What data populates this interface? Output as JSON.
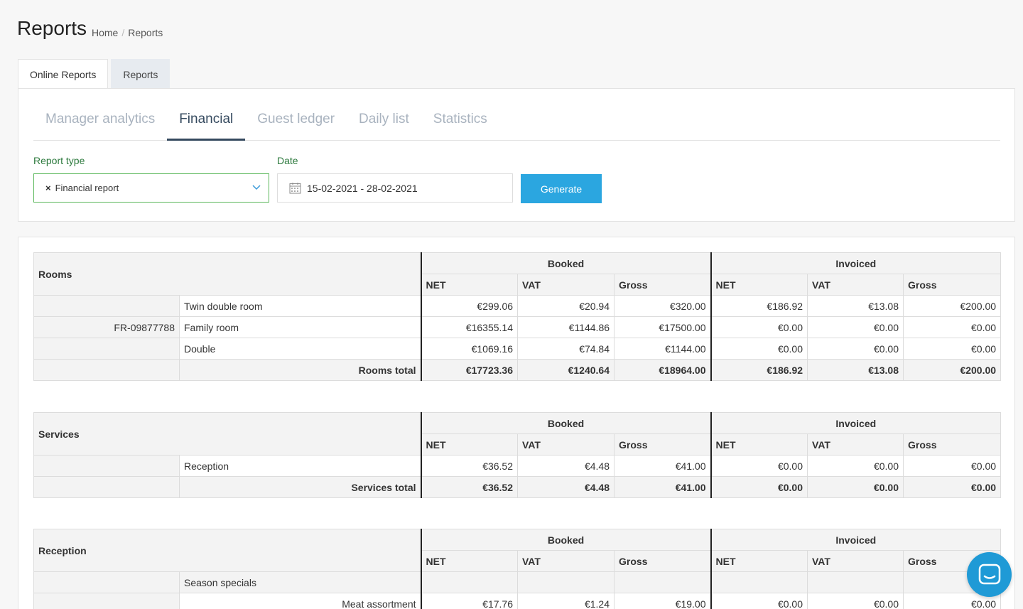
{
  "header": {
    "title": "Reports",
    "breadcrumb": [
      "Home",
      "Reports"
    ]
  },
  "outer_tabs": [
    "Online Reports",
    "Reports"
  ],
  "sub_tabs": [
    "Manager analytics",
    "Financial",
    "Guest ledger",
    "Daily list",
    "Statistics"
  ],
  "form": {
    "report_type_label": "Report type",
    "report_type_value": "Financial report",
    "date_label": "Date",
    "date_value": "15-02-2021 - 28-02-2021",
    "generate_label": "Generate"
  },
  "colors": {
    "accent": "#2ba6e0",
    "active_tab": "#34495e",
    "label_green": "#2d7a3e"
  },
  "headers": {
    "booked": "Booked",
    "invoiced": "Invoiced",
    "net": "NET",
    "vat": "VAT",
    "gross": "Gross"
  },
  "rooms": {
    "title": "Rooms",
    "rows": [
      {
        "code": "",
        "name": "Twin double room",
        "vals": [
          "€299.06",
          "€20.94",
          "€320.00",
          "€186.92",
          "€13.08",
          "€200.00"
        ]
      },
      {
        "code": "FR-09877788",
        "name": "Family room",
        "vals": [
          "€16355.14",
          "€1144.86",
          "€17500.00",
          "€0.00",
          "€0.00",
          "€0.00"
        ]
      },
      {
        "code": "",
        "name": "Double",
        "vals": [
          "€1069.16",
          "€74.84",
          "€1144.00",
          "€0.00",
          "€0.00",
          "€0.00"
        ]
      }
    ],
    "total_label": "Rooms total",
    "total": [
      "€17723.36",
      "€1240.64",
      "€18964.00",
      "€186.92",
      "€13.08",
      "€200.00"
    ]
  },
  "services": {
    "title": "Services",
    "rows": [
      {
        "code": "",
        "name": "Reception",
        "vals": [
          "€36.52",
          "€4.48",
          "€41.00",
          "€0.00",
          "€0.00",
          "€0.00"
        ]
      }
    ],
    "total_label": "Services total",
    "total": [
      "€36.52",
      "€4.48",
      "€41.00",
      "€0.00",
      "€0.00",
      "€0.00"
    ]
  },
  "reception": {
    "title": "Reception",
    "group": "Season specials",
    "row": {
      "name": "Meat assortment",
      "vals": [
        "€17.76",
        "€1.24",
        "€19.00",
        "€0.00",
        "€0.00",
        "€0.00"
      ]
    }
  }
}
